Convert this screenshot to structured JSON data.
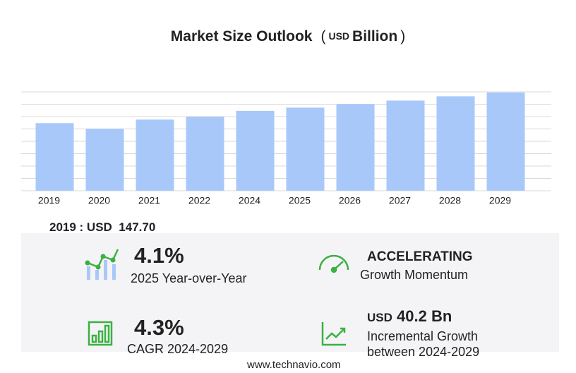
{
  "chart_data": {
    "type": "bar",
    "title": "Market Size Outlook",
    "unit": [
      "(",
      "USD",
      "Billion",
      ")"
    ],
    "categories": [
      "2019",
      "2020",
      "2021",
      "2022",
      "2024",
      "2025",
      "2026",
      "2027",
      "2028",
      "2029"
    ],
    "values": [
      147.7,
      135.4,
      155.4,
      161.5,
      174.5,
      181.5,
      189.2,
      196.9,
      206.2,
      214.7
    ],
    "color": "#a8c8fa",
    "ylim": [
      0,
      216
    ],
    "yticks": [
      0,
      27,
      54,
      81,
      108,
      135,
      162,
      189,
      216
    ],
    "grid": true
  },
  "highlight": {
    "label": "2019 : USD",
    "value": "147.70"
  },
  "stats": [
    {
      "value": "4.1%",
      "label": "2025 Year-over-Year"
    },
    {
      "value": "ACCELERATING",
      "label": "Growth Momentum"
    },
    {
      "value": "4.3%",
      "label": "CAGR 2024-2029"
    },
    {
      "currency": "USD",
      "value": "40.2 Bn",
      "label": "Incremental Growth",
      "label2": "between 2024-2029"
    }
  ],
  "footer": "www.technavio.com"
}
